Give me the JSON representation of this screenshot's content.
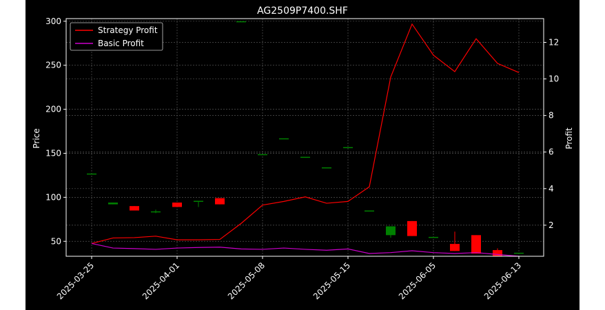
{
  "chart_data": {
    "type": "candlestick",
    "title": "AG2509P7400.SHF",
    "xlabel": "",
    "ylabel": "Price",
    "y2label": "Profit",
    "ylim": [
      33,
      303
    ],
    "y2lim": [
      0.3,
      13.3
    ],
    "yticks": [
      50,
      100,
      150,
      200,
      250,
      300
    ],
    "y2ticks": [
      2,
      4,
      6,
      8,
      10,
      12
    ],
    "x_tick_labels": [
      "2025-03-25",
      "2025-04-01",
      "2025-05-08",
      "2025-05-15",
      "2025-06-05",
      "2025-06-13"
    ],
    "x_tick_positions": [
      0,
      4,
      8,
      12,
      16,
      20
    ],
    "grid": true,
    "legend_position": "top-left",
    "colors": {
      "background": "#000000",
      "text": "#ffffff",
      "grid": "#555555",
      "up": "#008000",
      "down": "#ff0000",
      "strategy": "#ff0000",
      "basic": "#cc00cc"
    },
    "candles": [
      {
        "i": 0,
        "open": 127,
        "close": 127,
        "high": 127,
        "low": 127
      },
      {
        "i": 1,
        "open": 92,
        "close": 94,
        "high": 94,
        "low": 92
      },
      {
        "i": 2,
        "open": 90,
        "close": 85,
        "high": 90,
        "low": 85
      },
      {
        "i": 3,
        "open": 83,
        "close": 84,
        "high": 86,
        "low": 82
      },
      {
        "i": 4,
        "open": 94,
        "close": 89,
        "high": 94,
        "low": 89
      },
      {
        "i": 5,
        "open": 96,
        "close": 96,
        "high": 96,
        "low": 89
      },
      {
        "i": 6,
        "open": 99,
        "close": 92,
        "high": 99,
        "low": 92
      },
      {
        "i": 7,
        "open": 300,
        "close": 300,
        "high": 300,
        "low": 300
      },
      {
        "i": 8,
        "open": 149,
        "close": 149,
        "high": 149,
        "low": 149
      },
      {
        "i": 9,
        "open": 167,
        "close": 167,
        "high": 167,
        "low": 167
      },
      {
        "i": 10,
        "open": 146,
        "close": 146,
        "high": 146,
        "low": 146
      },
      {
        "i": 11,
        "open": 134,
        "close": 134,
        "high": 134,
        "low": 134
      },
      {
        "i": 12,
        "open": 157,
        "close": 157,
        "high": 157,
        "low": 157
      },
      {
        "i": 13,
        "open": 85,
        "close": 85,
        "high": 85,
        "low": 85
      },
      {
        "i": 14,
        "open": 57,
        "close": 67,
        "high": 67,
        "low": 54
      },
      {
        "i": 15,
        "open": 73,
        "close": 56,
        "high": 73,
        "low": 56
      },
      {
        "i": 16,
        "open": 55,
        "close": 55,
        "high": 55,
        "low": 55
      },
      {
        "i": 17,
        "open": 47,
        "close": 39,
        "high": 61,
        "low": 39
      },
      {
        "i": 18,
        "open": 57,
        "close": 36,
        "high": 57,
        "low": 36
      },
      {
        "i": 19,
        "open": 40,
        "close": 33,
        "high": 42,
        "low": 33
      },
      {
        "i": 20,
        "open": 37,
        "close": 37,
        "high": 37,
        "low": 37
      }
    ],
    "series": [
      {
        "name": "Strategy Profit",
        "axis": "right",
        "x": [
          0,
          1,
          2,
          3,
          4,
          5,
          6,
          7,
          8,
          9,
          10,
          11,
          12,
          13,
          14,
          15,
          16,
          17,
          18,
          19,
          20
        ],
        "values": [
          1.0,
          1.3,
          1.32,
          1.4,
          1.2,
          1.2,
          1.22,
          2.1,
          3.1,
          3.3,
          3.55,
          3.2,
          3.3,
          4.1,
          10.1,
          13.0,
          11.3,
          10.4,
          12.2,
          10.85,
          10.35
        ]
      },
      {
        "name": "Basic Profit",
        "axis": "right",
        "x": [
          0,
          1,
          2,
          3,
          4,
          5,
          6,
          7,
          8,
          9,
          10,
          11,
          12,
          13,
          14,
          15,
          16,
          17,
          18,
          19,
          20
        ],
        "values": [
          1.0,
          0.75,
          0.72,
          0.68,
          0.75,
          0.78,
          0.8,
          0.7,
          0.68,
          0.75,
          0.68,
          0.63,
          0.7,
          0.45,
          0.5,
          0.6,
          0.5,
          0.45,
          0.5,
          0.4,
          0.3
        ]
      }
    ]
  }
}
